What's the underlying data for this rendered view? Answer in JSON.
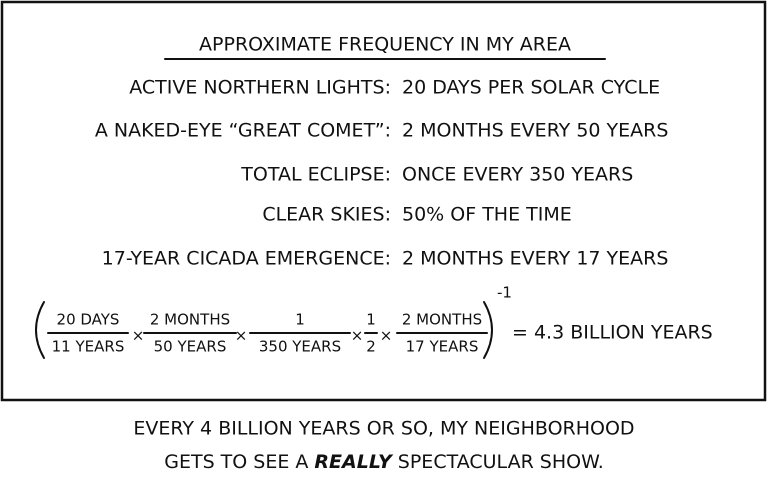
{
  "panel": {
    "title": "APPROXIMATE FREQUENCY IN MY AREA",
    "rows": [
      [
        "ACTIVE NORTHERN LIGHTS:",
        "20 DAYS PER SOLAR CYCLE"
      ],
      [
        "A NAKED-EYE “GREAT COMET”:",
        "2 MONTHS EVERY 50 YEARS"
      ],
      [
        "TOTAL ECLIPSE:",
        "ONCE EVERY 350 YEARS"
      ],
      [
        "CLEAR SKIES:",
        "50% OF THE TIME"
      ],
      [
        "17-YEAR CICADA EMERGENCE:",
        "2 MONTHS EVERY 17 YEARS"
      ]
    ],
    "formula": {
      "fractions": [
        [
          "20 DAYS",
          "11 YEARS"
        ],
        [
          "2 MONTHS",
          "50 YEARS"
        ],
        [
          "1",
          "350 YEARS"
        ],
        [
          "1",
          "2"
        ],
        [
          "2 MONTHS",
          "17 YEARS"
        ]
      ],
      "operators": [
        "×",
        "×",
        "×",
        "×"
      ],
      "exponent": "-1",
      "result": "= 4.3 BILLION YEARS"
    }
  },
  "caption": {
    "line1": "EVERY 4 BILLION YEARS OR SO, MY NEIGHBORHOOD",
    "line2": [
      "GETS TO SEE A ",
      "REALLY",
      " SPECTACULAR SHOW."
    ]
  }
}
